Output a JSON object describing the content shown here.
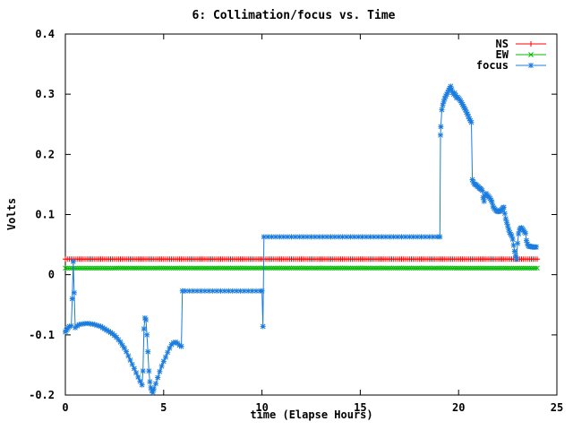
{
  "window": {
    "background": "#ffffff"
  },
  "chart_data": {
    "type": "line",
    "title": "6: Collimation/focus vs. Time",
    "xlabel": "time (Elapse Hours)",
    "ylabel": "Volts",
    "xlim": [
      0,
      25
    ],
    "ylim": [
      -0.2,
      0.4
    ],
    "xticks": [
      0,
      5,
      10,
      15,
      20,
      25
    ],
    "yticks": [
      -0.2,
      -0.1,
      0,
      0.1,
      0.2,
      0.3,
      0.4
    ],
    "grid": false,
    "legend_position": "top-right-inside",
    "axis_color": "#000000",
    "series": [
      {
        "name": "NS",
        "color": "#ff0000",
        "marker": "plus",
        "style": "constant",
        "value": 0.026,
        "x_start": 0,
        "x_end": 24.05,
        "marker_step": 0.1
      },
      {
        "name": "EW",
        "color": "#00bb00",
        "marker": "cross",
        "style": "constant",
        "value": 0.011,
        "x_start": 0,
        "x_end": 24.05,
        "marker_step": 0.1
      },
      {
        "name": "focus",
        "color": "#1b7ce0",
        "marker": "star",
        "style": "points",
        "points": [
          [
            0,
            -0.095
          ],
          [
            0.05,
            -0.092
          ],
          [
            0.1,
            -0.09
          ],
          [
            0.15,
            -0.088
          ],
          [
            0.2,
            -0.086
          ],
          [
            0.3,
            -0.085
          ],
          [
            0.35,
            -0.04
          ],
          [
            0.4,
            0.022
          ],
          [
            0.45,
            -0.03
          ],
          [
            0.5,
            -0.088
          ],
          [
            0.6,
            -0.085
          ],
          [
            0.7,
            -0.083
          ],
          [
            0.8,
            -0.082
          ],
          [
            0.9,
            -0.082
          ],
          [
            1.0,
            -0.081
          ],
          [
            1.1,
            -0.081
          ],
          [
            1.2,
            -0.081
          ],
          [
            1.3,
            -0.082
          ],
          [
            1.4,
            -0.082
          ],
          [
            1.5,
            -0.083
          ],
          [
            1.6,
            -0.084
          ],
          [
            1.7,
            -0.085
          ],
          [
            1.8,
            -0.086
          ],
          [
            1.9,
            -0.088
          ],
          [
            2.0,
            -0.09
          ],
          [
            2.1,
            -0.092
          ],
          [
            2.2,
            -0.094
          ],
          [
            2.3,
            -0.096
          ],
          [
            2.4,
            -0.098
          ],
          [
            2.5,
            -0.101
          ],
          [
            2.6,
            -0.104
          ],
          [
            2.7,
            -0.108
          ],
          [
            2.8,
            -0.112
          ],
          [
            2.9,
            -0.117
          ],
          [
            3.0,
            -0.122
          ],
          [
            3.1,
            -0.128
          ],
          [
            3.2,
            -0.135
          ],
          [
            3.3,
            -0.142
          ],
          [
            3.4,
            -0.149
          ],
          [
            3.5,
            -0.156
          ],
          [
            3.6,
            -0.163
          ],
          [
            3.7,
            -0.17
          ],
          [
            3.8,
            -0.177
          ],
          [
            3.9,
            -0.183
          ],
          [
            3.95,
            -0.16
          ],
          [
            4.0,
            -0.09
          ],
          [
            4.05,
            -0.072
          ],
          [
            4.1,
            -0.075
          ],
          [
            4.15,
            -0.1
          ],
          [
            4.2,
            -0.128
          ],
          [
            4.25,
            -0.16
          ],
          [
            4.3,
            -0.178
          ],
          [
            4.35,
            -0.188
          ],
          [
            4.4,
            -0.193
          ],
          [
            4.45,
            -0.196
          ],
          [
            4.5,
            -0.19
          ],
          [
            4.6,
            -0.181
          ],
          [
            4.7,
            -0.171
          ],
          [
            4.8,
            -0.161
          ],
          [
            4.9,
            -0.152
          ],
          [
            5.0,
            -0.144
          ],
          [
            5.1,
            -0.137
          ],
          [
            5.2,
            -0.129
          ],
          [
            5.3,
            -0.122
          ],
          [
            5.4,
            -0.116
          ],
          [
            5.5,
            -0.113
          ],
          [
            5.6,
            -0.112
          ],
          [
            5.7,
            -0.114
          ],
          [
            5.8,
            -0.117
          ],
          [
            5.9,
            -0.119
          ],
          [
            5.95,
            -0.027
          ],
          [
            6.1,
            -0.027
          ],
          [
            6.3,
            -0.027
          ],
          [
            6.5,
            -0.027
          ],
          [
            6.7,
            -0.027
          ],
          [
            6.9,
            -0.027
          ],
          [
            7.1,
            -0.027
          ],
          [
            7.3,
            -0.027
          ],
          [
            7.5,
            -0.027
          ],
          [
            7.7,
            -0.027
          ],
          [
            7.9,
            -0.027
          ],
          [
            8.1,
            -0.027
          ],
          [
            8.3,
            -0.027
          ],
          [
            8.5,
            -0.027
          ],
          [
            8.7,
            -0.027
          ],
          [
            8.9,
            -0.027
          ],
          [
            9.1,
            -0.027
          ],
          [
            9.3,
            -0.027
          ],
          [
            9.5,
            -0.027
          ],
          [
            9.7,
            -0.027
          ],
          [
            9.9,
            -0.027
          ],
          [
            10.0,
            -0.027
          ],
          [
            10.05,
            -0.086
          ],
          [
            10.1,
            0.063
          ],
          [
            10.3,
            0.063
          ],
          [
            10.5,
            0.063
          ],
          [
            10.7,
            0.063
          ],
          [
            10.9,
            0.063
          ],
          [
            11.1,
            0.063
          ],
          [
            11.3,
            0.063
          ],
          [
            11.5,
            0.063
          ],
          [
            11.7,
            0.063
          ],
          [
            11.9,
            0.063
          ],
          [
            12.1,
            0.063
          ],
          [
            12.3,
            0.063
          ],
          [
            12.5,
            0.063
          ],
          [
            12.7,
            0.063
          ],
          [
            12.9,
            0.063
          ],
          [
            13.1,
            0.063
          ],
          [
            13.3,
            0.063
          ],
          [
            13.5,
            0.063
          ],
          [
            13.7,
            0.063
          ],
          [
            13.9,
            0.063
          ],
          [
            14.1,
            0.063
          ],
          [
            14.3,
            0.063
          ],
          [
            14.5,
            0.063
          ],
          [
            14.7,
            0.063
          ],
          [
            14.9,
            0.063
          ],
          [
            15.1,
            0.063
          ],
          [
            15.3,
            0.063
          ],
          [
            15.5,
            0.063
          ],
          [
            15.7,
            0.063
          ],
          [
            15.9,
            0.063
          ],
          [
            16.1,
            0.063
          ],
          [
            16.3,
            0.063
          ],
          [
            16.5,
            0.063
          ],
          [
            16.7,
            0.063
          ],
          [
            16.9,
            0.063
          ],
          [
            17.1,
            0.063
          ],
          [
            17.3,
            0.063
          ],
          [
            17.5,
            0.063
          ],
          [
            17.7,
            0.063
          ],
          [
            17.9,
            0.063
          ],
          [
            18.1,
            0.063
          ],
          [
            18.3,
            0.063
          ],
          [
            18.5,
            0.063
          ],
          [
            18.7,
            0.063
          ],
          [
            18.9,
            0.063
          ],
          [
            19.05,
            0.063
          ],
          [
            19.08,
            0.232
          ],
          [
            19.1,
            0.246
          ],
          [
            19.15,
            0.274
          ],
          [
            19.2,
            0.282
          ],
          [
            19.25,
            0.288
          ],
          [
            19.3,
            0.293
          ],
          [
            19.35,
            0.297
          ],
          [
            19.4,
            0.3
          ],
          [
            19.45,
            0.303
          ],
          [
            19.5,
            0.307
          ],
          [
            19.55,
            0.31
          ],
          [
            19.6,
            0.313
          ],
          [
            19.65,
            0.308
          ],
          [
            19.7,
            0.303
          ],
          [
            19.75,
            0.3
          ],
          [
            19.8,
            0.302
          ],
          [
            19.85,
            0.298
          ],
          [
            19.9,
            0.294
          ],
          [
            19.95,
            0.295
          ],
          [
            20.0,
            0.293
          ],
          [
            20.05,
            0.291
          ],
          [
            20.1,
            0.289
          ],
          [
            20.15,
            0.286
          ],
          [
            20.2,
            0.283
          ],
          [
            20.25,
            0.28
          ],
          [
            20.3,
            0.277
          ],
          [
            20.35,
            0.274
          ],
          [
            20.4,
            0.27
          ],
          [
            20.45,
            0.267
          ],
          [
            20.5,
            0.263
          ],
          [
            20.55,
            0.259
          ],
          [
            20.6,
            0.256
          ],
          [
            20.65,
            0.253
          ],
          [
            20.7,
            0.158
          ],
          [
            20.75,
            0.154
          ],
          [
            20.8,
            0.151
          ],
          [
            20.85,
            0.15
          ],
          [
            20.9,
            0.149
          ],
          [
            20.95,
            0.147
          ],
          [
            21.0,
            0.146
          ],
          [
            21.05,
            0.144
          ],
          [
            21.1,
            0.143
          ],
          [
            21.15,
            0.142
          ],
          [
            21.2,
            0.14
          ],
          [
            21.25,
            0.128
          ],
          [
            21.3,
            0.122
          ],
          [
            21.35,
            0.131
          ],
          [
            21.4,
            0.135
          ],
          [
            21.45,
            0.133
          ],
          [
            21.5,
            0.131
          ],
          [
            21.55,
            0.129
          ],
          [
            21.6,
            0.127
          ],
          [
            21.65,
            0.124
          ],
          [
            21.7,
            0.121
          ],
          [
            21.75,
            0.114
          ],
          [
            21.8,
            0.111
          ],
          [
            21.85,
            0.109
          ],
          [
            21.9,
            0.107
          ],
          [
            21.95,
            0.106
          ],
          [
            22.0,
            0.105
          ],
          [
            22.05,
            0.105
          ],
          [
            22.1,
            0.106
          ],
          [
            22.15,
            0.107
          ],
          [
            22.2,
            0.109
          ],
          [
            22.25,
            0.111
          ],
          [
            22.3,
            0.112
          ],
          [
            22.35,
            0.102
          ],
          [
            22.4,
            0.093
          ],
          [
            22.45,
            0.087
          ],
          [
            22.5,
            0.081
          ],
          [
            22.55,
            0.075
          ],
          [
            22.6,
            0.07
          ],
          [
            22.65,
            0.067
          ],
          [
            22.7,
            0.065
          ],
          [
            22.75,
            0.059
          ],
          [
            22.8,
            0.049
          ],
          [
            22.85,
            0.039
          ],
          [
            22.9,
            0.031
          ],
          [
            22.95,
            0.026
          ],
          [
            23.0,
            0.052
          ],
          [
            23.05,
            0.068
          ],
          [
            23.1,
            0.075
          ],
          [
            23.15,
            0.077
          ],
          [
            23.2,
            0.078
          ],
          [
            23.25,
            0.076
          ],
          [
            23.3,
            0.074
          ],
          [
            23.35,
            0.071
          ],
          [
            23.4,
            0.069
          ],
          [
            23.45,
            0.057
          ],
          [
            23.5,
            0.051
          ],
          [
            23.55,
            0.048
          ],
          [
            23.6,
            0.047
          ],
          [
            23.65,
            0.047
          ],
          [
            23.7,
            0.047
          ],
          [
            23.75,
            0.046
          ],
          [
            23.8,
            0.046
          ],
          [
            23.85,
            0.046
          ],
          [
            23.9,
            0.046
          ],
          [
            23.95,
            0.046
          ]
        ]
      }
    ]
  }
}
